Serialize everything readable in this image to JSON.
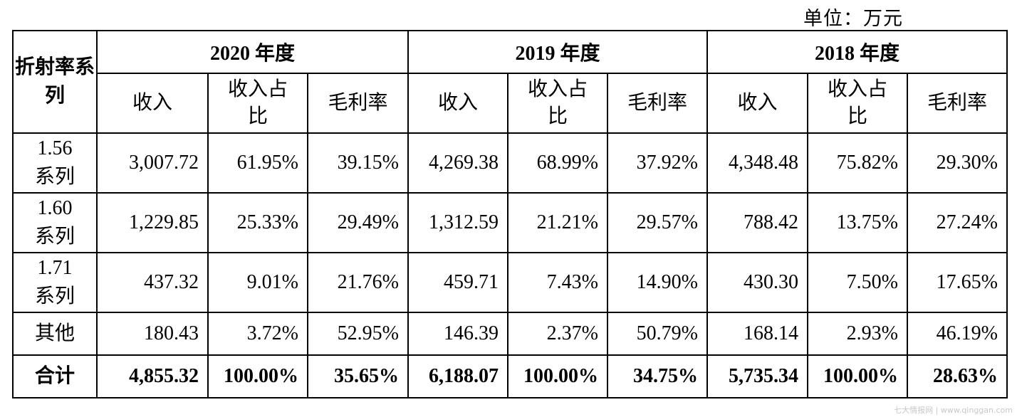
{
  "unit_label": "单位：万元",
  "row_header": "折射率系列",
  "years": [
    "2020 年度",
    "2019 年度",
    "2018 年度"
  ],
  "sub_headers": [
    "收入",
    "收入占比",
    "毛利率"
  ],
  "rows": [
    {
      "label": "1.56 系列",
      "values": [
        "3,007.72",
        "61.95%",
        "39.15%",
        "4,269.38",
        "68.99%",
        "37.92%",
        "4,348.48",
        "75.82%",
        "29.30%"
      ]
    },
    {
      "label": "1.60 系列",
      "values": [
        "1,229.85",
        "25.33%",
        "29.49%",
        "1,312.59",
        "21.21%",
        "29.57%",
        "788.42",
        "13.75%",
        "27.24%"
      ]
    },
    {
      "label": "1.71 系列",
      "values": [
        "437.32",
        "9.01%",
        "21.76%",
        "459.71",
        "7.43%",
        "14.90%",
        "430.30",
        "7.50%",
        "17.65%"
      ]
    },
    {
      "label": "其他",
      "values": [
        "180.43",
        "3.72%",
        "52.95%",
        "146.39",
        "2.37%",
        "50.79%",
        "168.14",
        "2.93%",
        "46.19%"
      ]
    },
    {
      "label": "合计",
      "values": [
        "4,855.32",
        "100.00%",
        "35.65%",
        "6,188.07",
        "100.00%",
        "34.75%",
        "5,735.34",
        "100.00%",
        "28.63%"
      ]
    }
  ],
  "watermark": "七大情报网 | www.qinggan.com"
}
